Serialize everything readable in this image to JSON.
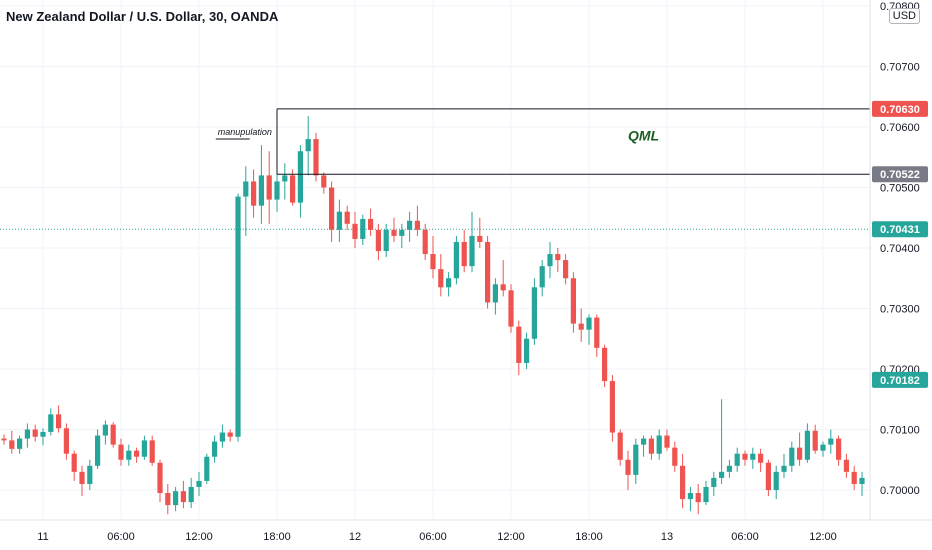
{
  "header": {
    "title": "New Zealand Dollar / U.S. Dollar, 30, OANDA",
    "currency": "USD"
  },
  "colors": {
    "up": "#26a69a",
    "down": "#ef5350",
    "grid": "#f0f3fa",
    "axis_text": "#131722",
    "zone_line": "#131722",
    "annotation_text": "#1b5e20"
  },
  "chart_data": {
    "type": "candlestick",
    "price_ticks": [
      "0.70000",
      "0.70100",
      "0.70200",
      "0.70300",
      "0.70400",
      "0.70500",
      "0.70600",
      "0.70700",
      "0.70800"
    ],
    "time_ticks": [
      {
        "label": "11",
        "index": 5
      },
      {
        "label": "06:00",
        "index": 15
      },
      {
        "label": "12:00",
        "index": 25
      },
      {
        "label": "18:00",
        "index": 35
      },
      {
        "label": "12",
        "index": 45
      },
      {
        "label": "06:00",
        "index": 55
      },
      {
        "label": "12:00",
        "index": 65
      },
      {
        "label": "18:00",
        "index": 75
      },
      {
        "label": "13",
        "index": 85
      },
      {
        "label": "06:00",
        "index": 95
      },
      {
        "label": "12:00",
        "index": 105
      }
    ],
    "price_labels": [
      {
        "value": 0.7063,
        "text": "0.70630",
        "bg": "#ef5350"
      },
      {
        "value": 0.70522,
        "text": "0.70522",
        "bg": "#787b86"
      },
      {
        "value": 0.70431,
        "text": "0.70431",
        "bg": "#26a69a"
      },
      {
        "value": 0.70182,
        "text": "0.70182",
        "bg": "#26a69a"
      }
    ],
    "dotted_line_price": 0.70431,
    "zone": {
      "top": 0.7063,
      "bottom": 0.70522,
      "start_index": 35
    },
    "annotations": [
      {
        "text": "QML",
        "index": 82,
        "price": 0.70578
      },
      {
        "text": "manupulation",
        "index": 31,
        "price": 0.7059
      }
    ],
    "candles": [
      [
        0.70085,
        0.70092,
        0.70075,
        0.70082
      ],
      [
        0.70082,
        0.70098,
        0.7006,
        0.70068
      ],
      [
        0.70068,
        0.7009,
        0.7006,
        0.70085
      ],
      [
        0.70085,
        0.7011,
        0.7007,
        0.701
      ],
      [
        0.701,
        0.70108,
        0.7008,
        0.70088
      ],
      [
        0.70088,
        0.70102,
        0.70074,
        0.70096
      ],
      [
        0.70096,
        0.70135,
        0.7009,
        0.70125
      ],
      [
        0.70125,
        0.7014,
        0.70095,
        0.70102
      ],
      [
        0.70102,
        0.7011,
        0.7005,
        0.7006
      ],
      [
        0.7006,
        0.70065,
        0.70015,
        0.7003
      ],
      [
        0.7003,
        0.7004,
        0.6999,
        0.7001
      ],
      [
        0.7001,
        0.7005,
        0.7,
        0.7004
      ],
      [
        0.7004,
        0.701,
        0.70035,
        0.7009
      ],
      [
        0.7009,
        0.70115,
        0.70075,
        0.70108
      ],
      [
        0.70108,
        0.70112,
        0.7007,
        0.70075
      ],
      [
        0.70075,
        0.70085,
        0.7004,
        0.7005
      ],
      [
        0.7005,
        0.70075,
        0.7004,
        0.70065
      ],
      [
        0.70065,
        0.7007,
        0.70045,
        0.70055
      ],
      [
        0.70055,
        0.7009,
        0.7005,
        0.70082
      ],
      [
        0.70082,
        0.7009,
        0.7004,
        0.70045
      ],
      [
        0.70045,
        0.7005,
        0.6998,
        0.69995
      ],
      [
        0.69995,
        0.7001,
        0.6996,
        0.69975
      ],
      [
        0.69975,
        0.70005,
        0.69965,
        0.69998
      ],
      [
        0.69998,
        0.70015,
        0.6997,
        0.6998
      ],
      [
        0.6998,
        0.7002,
        0.6997,
        0.70005
      ],
      [
        0.70005,
        0.7003,
        0.6999,
        0.70015
      ],
      [
        0.70015,
        0.7006,
        0.7001,
        0.70055
      ],
      [
        0.70055,
        0.7009,
        0.70045,
        0.7008
      ],
      [
        0.7008,
        0.70108,
        0.7007,
        0.70095
      ],
      [
        0.70095,
        0.701,
        0.7008,
        0.70088
      ],
      [
        0.70088,
        0.7049,
        0.7008,
        0.70485
      ],
      [
        0.70485,
        0.70535,
        0.7042,
        0.7051
      ],
      [
        0.7051,
        0.7053,
        0.7045,
        0.7047
      ],
      [
        0.7047,
        0.7057,
        0.7044,
        0.7052
      ],
      [
        0.7052,
        0.7056,
        0.7044,
        0.7048
      ],
      [
        0.7048,
        0.7053,
        0.7046,
        0.7051
      ],
      [
        0.7051,
        0.7054,
        0.7048,
        0.7052
      ],
      [
        0.7052,
        0.7053,
        0.7047,
        0.70475
      ],
      [
        0.70475,
        0.7057,
        0.7045,
        0.7056
      ],
      [
        0.7056,
        0.70618,
        0.7052,
        0.7058
      ],
      [
        0.7058,
        0.7059,
        0.7051,
        0.7052
      ],
      [
        0.7052,
        0.70525,
        0.7049,
        0.705
      ],
      [
        0.705,
        0.7051,
        0.7041,
        0.7043
      ],
      [
        0.7043,
        0.7048,
        0.7041,
        0.7046
      ],
      [
        0.7046,
        0.7047,
        0.7043,
        0.7044
      ],
      [
        0.7044,
        0.7046,
        0.704,
        0.70415
      ],
      [
        0.70415,
        0.70455,
        0.70405,
        0.70448
      ],
      [
        0.70448,
        0.70465,
        0.7042,
        0.7043
      ],
      [
        0.7043,
        0.7044,
        0.7038,
        0.70395
      ],
      [
        0.70395,
        0.7044,
        0.70385,
        0.7043
      ],
      [
        0.7043,
        0.7045,
        0.7041,
        0.7042
      ],
      [
        0.7042,
        0.7044,
        0.704,
        0.7043
      ],
      [
        0.7043,
        0.7046,
        0.7041,
        0.70445
      ],
      [
        0.70445,
        0.7047,
        0.7042,
        0.7043
      ],
      [
        0.7043,
        0.7044,
        0.7038,
        0.7039
      ],
      [
        0.7039,
        0.7042,
        0.7035,
        0.70365
      ],
      [
        0.70365,
        0.7039,
        0.7032,
        0.70335
      ],
      [
        0.70335,
        0.7036,
        0.7032,
        0.7035
      ],
      [
        0.7035,
        0.7042,
        0.7034,
        0.7041
      ],
      [
        0.7041,
        0.7043,
        0.7036,
        0.7037
      ],
      [
        0.7037,
        0.7046,
        0.7036,
        0.7042
      ],
      [
        0.7042,
        0.7045,
        0.704,
        0.7041
      ],
      [
        0.7041,
        0.7042,
        0.703,
        0.7031
      ],
      [
        0.7031,
        0.7035,
        0.7029,
        0.7034
      ],
      [
        0.7034,
        0.7038,
        0.7032,
        0.7033
      ],
      [
        0.7033,
        0.7034,
        0.7026,
        0.7027
      ],
      [
        0.7027,
        0.7028,
        0.7019,
        0.7021
      ],
      [
        0.7021,
        0.7026,
        0.702,
        0.7025
      ],
      [
        0.7025,
        0.7035,
        0.7024,
        0.70335
      ],
      [
        0.70335,
        0.7038,
        0.7032,
        0.7037
      ],
      [
        0.7037,
        0.7041,
        0.7035,
        0.7039
      ],
      [
        0.7039,
        0.704,
        0.7036,
        0.7038
      ],
      [
        0.7038,
        0.7039,
        0.7034,
        0.7035
      ],
      [
        0.7035,
        0.7036,
        0.7026,
        0.70275
      ],
      [
        0.70275,
        0.703,
        0.70245,
        0.70265
      ],
      [
        0.70265,
        0.7029,
        0.7024,
        0.70285
      ],
      [
        0.70285,
        0.7029,
        0.7022,
        0.70235
      ],
      [
        0.70235,
        0.7024,
        0.7017,
        0.7018
      ],
      [
        0.7018,
        0.7019,
        0.7008,
        0.70095
      ],
      [
        0.70095,
        0.701,
        0.7004,
        0.7005
      ],
      [
        0.7005,
        0.70065,
        0.7,
        0.70025
      ],
      [
        0.70025,
        0.70085,
        0.7001,
        0.70075
      ],
      [
        0.70075,
        0.7009,
        0.70055,
        0.70085
      ],
      [
        0.70085,
        0.7009,
        0.7005,
        0.7006
      ],
      [
        0.7006,
        0.701,
        0.7005,
        0.7009
      ],
      [
        0.7009,
        0.701,
        0.70065,
        0.7007
      ],
      [
        0.7007,
        0.7008,
        0.7003,
        0.7004
      ],
      [
        0.7004,
        0.7006,
        0.6997,
        0.69985
      ],
      [
        0.69985,
        0.70005,
        0.69965,
        0.69995
      ],
      [
        0.69995,
        0.7001,
        0.6996,
        0.6998
      ],
      [
        0.6998,
        0.70015,
        0.69975,
        0.70005
      ],
      [
        0.70005,
        0.7003,
        0.6999,
        0.7002
      ],
      [
        0.7002,
        0.7015,
        0.7001,
        0.7003
      ],
      [
        0.7003,
        0.7005,
        0.7002,
        0.7004
      ],
      [
        0.7004,
        0.7007,
        0.7003,
        0.7006
      ],
      [
        0.7006,
        0.70065,
        0.7004,
        0.7005
      ],
      [
        0.7005,
        0.7007,
        0.70035,
        0.7006
      ],
      [
        0.7006,
        0.70068,
        0.7003,
        0.70045
      ],
      [
        0.70045,
        0.7005,
        0.6999,
        0.7
      ],
      [
        0.7,
        0.7004,
        0.69985,
        0.7003
      ],
      [
        0.7003,
        0.7006,
        0.7002,
        0.7004
      ],
      [
        0.7004,
        0.7008,
        0.7003,
        0.7007
      ],
      [
        0.7007,
        0.70095,
        0.7004,
        0.7005
      ],
      [
        0.7005,
        0.7011,
        0.70045,
        0.70098
      ],
      [
        0.70098,
        0.70108,
        0.7006,
        0.70065
      ],
      [
        0.70065,
        0.7008,
        0.70055,
        0.70075
      ],
      [
        0.70075,
        0.701,
        0.7006,
        0.70085
      ],
      [
        0.70085,
        0.7009,
        0.7004,
        0.7005
      ],
      [
        0.7005,
        0.7006,
        0.7002,
        0.7003
      ],
      [
        0.7003,
        0.7004,
        0.7,
        0.7001
      ],
      [
        0.7001,
        0.7003,
        0.6999,
        0.7002
      ],
      [
        0.7002,
        0.7009,
        0.7001,
        0.7008
      ],
      [
        0.7008,
        0.70095,
        0.7006,
        0.70075
      ],
      [
        0.70075,
        0.70085,
        0.70055,
        0.7007
      ],
      [
        0.7007,
        0.7008,
        0.7006,
        0.70065
      ],
      [
        0.70065,
        0.7009,
        0.70055,
        0.7008
      ],
      [
        0.7008,
        0.70085,
        0.7005,
        0.7006
      ],
      [
        0.7006,
        0.7007,
        0.7001,
        0.7002
      ],
      [
        0.7002,
        0.701,
        0.7001,
        0.7009
      ],
      [
        0.7009,
        0.7016,
        0.7008,
        0.7015
      ],
      [
        0.7015,
        0.7021,
        0.7014,
        0.70182
      ]
    ]
  }
}
